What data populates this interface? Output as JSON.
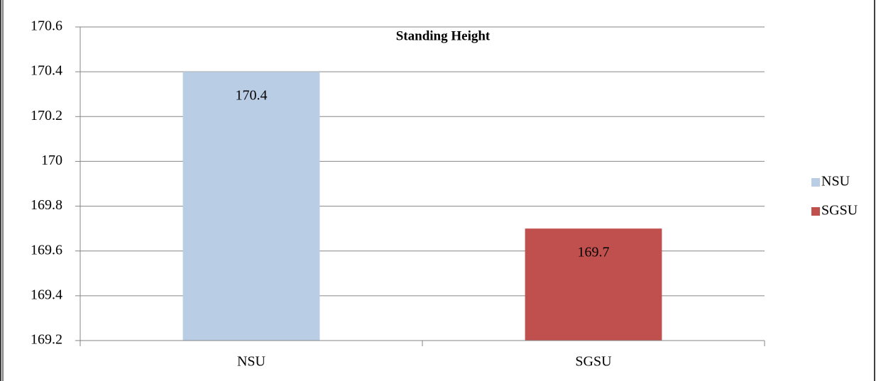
{
  "chart_data": {
    "type": "bar",
    "title": "Standing Height",
    "categories": [
      "NSU",
      "SGSU"
    ],
    "values": [
      170.4,
      169.7
    ],
    "colors": [
      "#b9cde5",
      "#c0504d"
    ],
    "ylim": [
      169.2,
      170.6
    ],
    "yticks": [
      169.2,
      169.4,
      169.6,
      169.8,
      170,
      170.2,
      170.4,
      170.6
    ],
    "grid": true,
    "legend": "right"
  }
}
